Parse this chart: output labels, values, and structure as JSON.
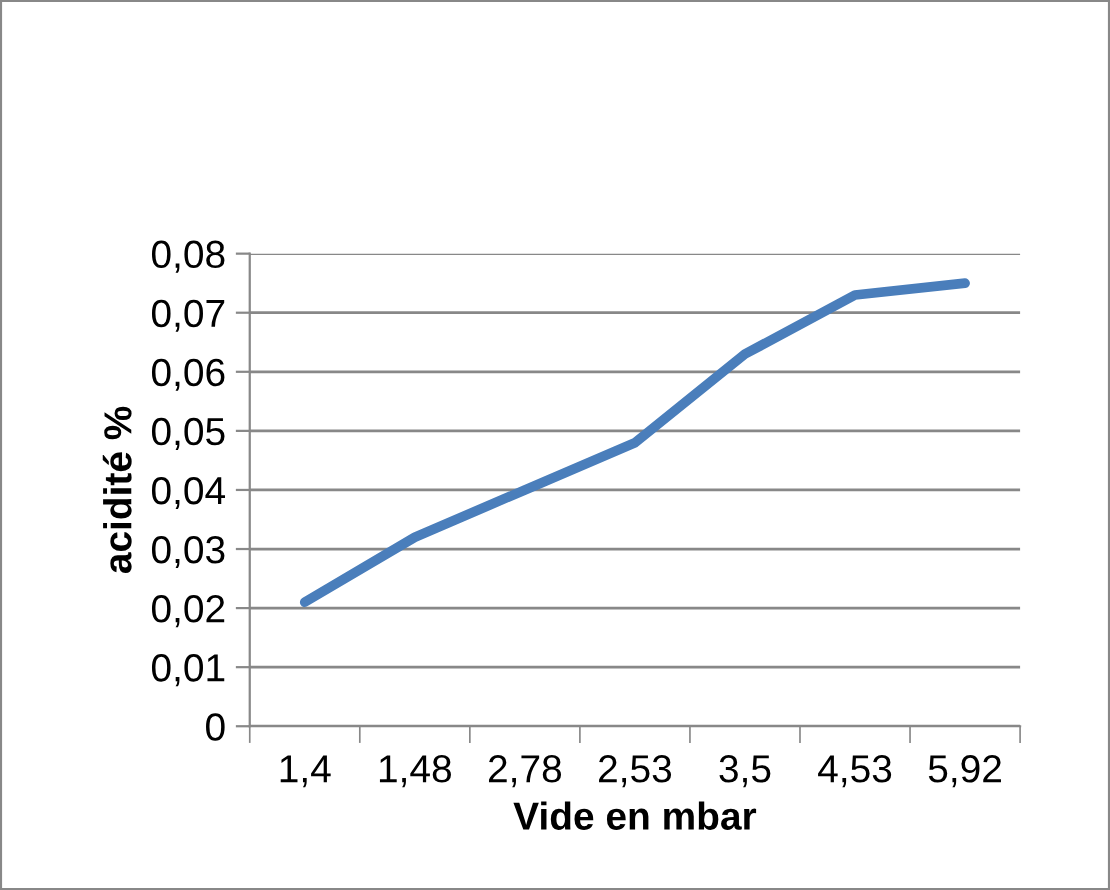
{
  "chart_data": {
    "type": "line",
    "xlabel": "Vide en mbar",
    "ylabel": "acidité %",
    "categories": [
      "1,4",
      "1,48",
      "2,78",
      "2,53",
      "3,5",
      "4,53",
      "5,92"
    ],
    "series": [
      {
        "color": "#4a7ebb",
        "values": [
          0.021,
          0.032,
          0.04,
          0.048,
          0.063,
          0.073,
          0.075
        ]
      }
    ],
    "ylim": [
      0,
      0.08
    ],
    "yticks": [
      0,
      {
        "value": 0.01,
        "label": "0,01"
      },
      {
        "value": 0.02,
        "label": "0,02"
      },
      {
        "value": 0.03,
        "label": "0,03"
      },
      {
        "value": 0.04,
        "label": "0,04"
      },
      {
        "value": 0.05,
        "label": "0,05"
      },
      {
        "value": 0.06,
        "label": "0,06"
      },
      {
        "value": 0.07,
        "label": "0,07"
      },
      {
        "value": 0.08,
        "label": "0,08"
      }
    ],
    "grid": "y",
    "marker": "none",
    "line_style": "solid"
  }
}
